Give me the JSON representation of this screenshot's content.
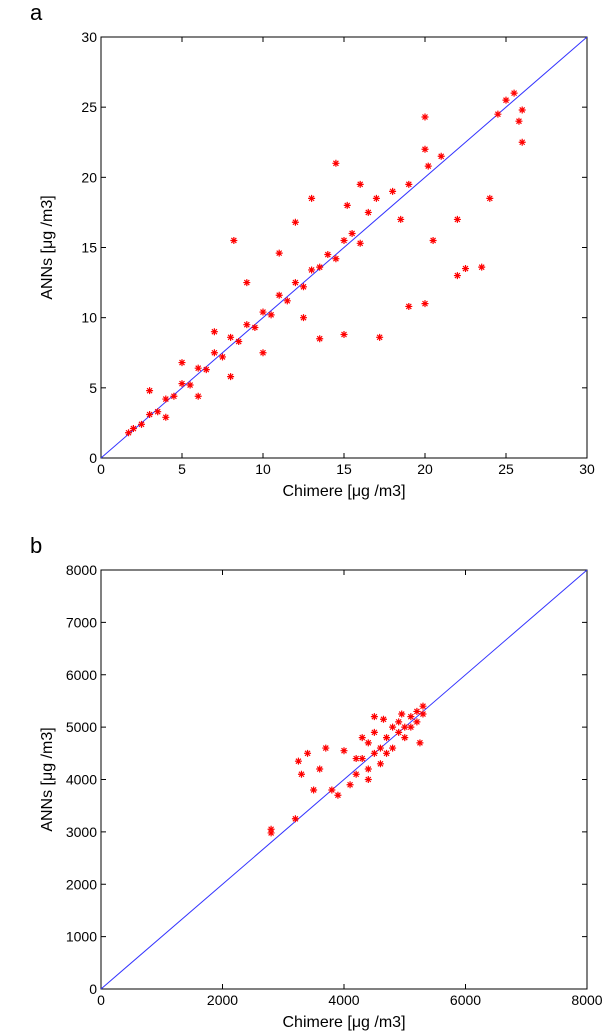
{
  "chart_data": [
    {
      "type": "scatter",
      "panel_label": "a",
      "x_label": "Chimere [μg /m3]",
      "y_label": "ANNs [μg /m3]",
      "xlim": [
        0,
        30
      ],
      "ylim": [
        0,
        30
      ],
      "xticks": [
        0,
        5,
        10,
        15,
        20,
        25,
        30
      ],
      "yticks": [
        0,
        5,
        10,
        15,
        20,
        25,
        30
      ],
      "identity_line": true,
      "line_color": "#3333ff",
      "series": [
        {
          "color": "#ff0000",
          "x": [
            1.7,
            2,
            2.5,
            3,
            3.5,
            4,
            4.5,
            5,
            5.5,
            6,
            6.5,
            7,
            7.5,
            8,
            8.5,
            9,
            9.5,
            10,
            10.5,
            11,
            11.5,
            12,
            12.5,
            13,
            13.5,
            14,
            14.5,
            15,
            15.5,
            16,
            3,
            4,
            5,
            6,
            7,
            8,
            8.2,
            9,
            10,
            11,
            12,
            12.5,
            13,
            13.5,
            14.5,
            15,
            15.2,
            16,
            17,
            17.2,
            18,
            18.5,
            19,
            20,
            20,
            20,
            20.5,
            22,
            22,
            22.5,
            23.5,
            24,
            24.5,
            25,
            25.5,
            26,
            26,
            25.8,
            20.2,
            19,
            21,
            16.5
          ],
          "y": [
            1.8,
            2.1,
            2.4,
            3.1,
            3.3,
            4.2,
            4.4,
            5.3,
            5.2,
            6.4,
            6.3,
            7.5,
            7.2,
            8.6,
            8.3,
            9.5,
            9.3,
            10.4,
            10.2,
            11.6,
            11.2,
            12.5,
            12.2,
            13.4,
            13.6,
            14.5,
            14.2,
            15.5,
            16,
            15.3,
            4.8,
            2.9,
            6.8,
            4.4,
            9,
            5.8,
            15.5,
            12.5,
            7.5,
            14.6,
            16.8,
            10,
            18.5,
            8.5,
            21,
            8.8,
            18,
            19.5,
            18.5,
            8.6,
            19,
            17,
            10.8,
            24.3,
            22,
            11,
            15.5,
            17,
            13,
            13.5,
            13.6,
            18.5,
            24.5,
            25.5,
            26,
            24.8,
            22.5,
            24,
            20.8,
            19.5,
            21.5,
            17.5
          ]
        }
      ]
    },
    {
      "type": "scatter",
      "panel_label": "b",
      "x_label": "Chimere [μg /m3]",
      "y_label": "ANNs [μg /m3]",
      "xlim": [
        0,
        8000
      ],
      "ylim": [
        0,
        8000
      ],
      "xticks": [
        0,
        2000,
        4000,
        6000,
        8000
      ],
      "yticks": [
        0,
        1000,
        2000,
        3000,
        4000,
        5000,
        6000,
        7000,
        8000
      ],
      "identity_line": true,
      "line_color": "#3333ff",
      "series": [
        {
          "color": "#ff0000",
          "x": [
            2800,
            2800,
            3200,
            3250,
            3400,
            3600,
            3700,
            3800,
            3900,
            4000,
            4100,
            4200,
            4300,
            4400,
            4400,
            4500,
            4500,
            4600,
            4600,
            4700,
            4700,
            4800,
            4800,
            4900,
            4900,
            5000,
            5000,
            5100,
            5100,
            5200,
            5200,
            5300,
            5300,
            5250,
            4500,
            4300,
            3500,
            3300,
            4200,
            4650,
            4950,
            4400
          ],
          "y": [
            3050,
            2980,
            3250,
            4350,
            4500,
            4200,
            4600,
            3800,
            3700,
            4550,
            3900,
            4100,
            4400,
            4200,
            4700,
            4500,
            4900,
            4600,
            4300,
            4800,
            4500,
            5000,
            4600,
            4900,
            5100,
            5000,
            4800,
            5200,
            5000,
            5300,
            5100,
            5400,
            5250,
            4700,
            5200,
            4800,
            3800,
            4100,
            4400,
            5150,
            5250,
            4000
          ]
        }
      ]
    }
  ]
}
